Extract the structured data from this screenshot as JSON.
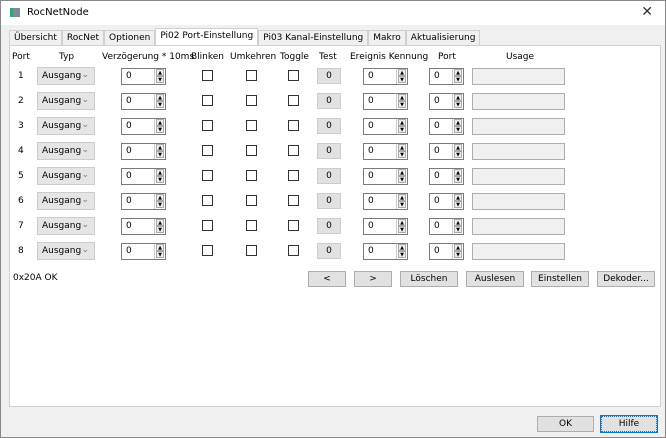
{
  "window": {
    "title": "RocNetNode",
    "close": "✕"
  },
  "tabs": [
    "Übersicht",
    "RocNet",
    "Optionen",
    "Pi02 Port-Einstellung",
    "Pi03 Kanal-Einstellung",
    "Makro",
    "Aktualisierung"
  ],
  "active_tab": 3,
  "headers": {
    "port": "Port",
    "typ": "Typ",
    "delay": "Verzögerung * 10ms",
    "blink": "Blinken",
    "invert": "Umkehren",
    "toggle": "Toggle",
    "test": "Test",
    "event": "Ereignis Kennung",
    "port2": "Port",
    "usage": "Usage"
  },
  "rows": [
    {
      "port": "1",
      "typ": "Ausgang",
      "delay": "0",
      "blink": false,
      "invert": false,
      "toggle": false,
      "test": "0",
      "event": "0",
      "port2": "0",
      "usage": ""
    },
    {
      "port": "2",
      "typ": "Ausgang",
      "delay": "0",
      "blink": false,
      "invert": false,
      "toggle": false,
      "test": "0",
      "event": "0",
      "port2": "0",
      "usage": ""
    },
    {
      "port": "3",
      "typ": "Ausgang",
      "delay": "0",
      "blink": false,
      "invert": false,
      "toggle": false,
      "test": "0",
      "event": "0",
      "port2": "0",
      "usage": ""
    },
    {
      "port": "4",
      "typ": "Ausgang",
      "delay": "0",
      "blink": false,
      "invert": false,
      "toggle": false,
      "test": "0",
      "event": "0",
      "port2": "0",
      "usage": ""
    },
    {
      "port": "5",
      "typ": "Ausgang",
      "delay": "0",
      "blink": false,
      "invert": false,
      "toggle": false,
      "test": "0",
      "event": "0",
      "port2": "0",
      "usage": ""
    },
    {
      "port": "6",
      "typ": "Ausgang",
      "delay": "0",
      "blink": false,
      "invert": false,
      "toggle": false,
      "test": "0",
      "event": "0",
      "port2": "0",
      "usage": ""
    },
    {
      "port": "7",
      "typ": "Ausgang",
      "delay": "0",
      "blink": false,
      "invert": false,
      "toggle": false,
      "test": "0",
      "event": "0",
      "port2": "0",
      "usage": ""
    },
    {
      "port": "8",
      "typ": "Ausgang",
      "delay": "0",
      "blink": false,
      "invert": false,
      "toggle": false,
      "test": "0",
      "event": "0",
      "port2": "0",
      "usage": ""
    }
  ],
  "status": "0x20A OK",
  "actions": {
    "prev": "<",
    "next": ">",
    "clear": "Löschen",
    "read": "Auslesen",
    "set": "Einstellen",
    "decoder": "Dekoder..."
  },
  "footer": {
    "ok": "OK",
    "help": "Hilfe"
  }
}
